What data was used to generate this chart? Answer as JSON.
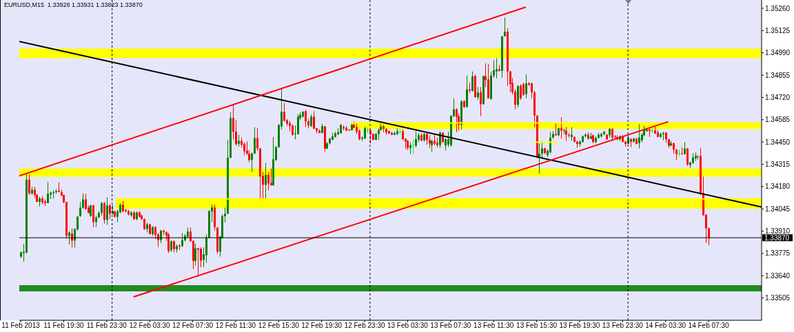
{
  "chart_data": {
    "type": "candlestick",
    "title": "EURUSD,M15  1.33928 1.33931 1.33823 1.33870",
    "x": [
      "2013-02-11T15:30",
      "2013-02-11T15:45",
      "2013-02-11T16:00",
      "2013-02-11T16:15",
      "2013-02-11T16:30",
      "2013-02-11T16:45",
      "2013-02-11T17:00",
      "2013-02-11T17:15",
      "2013-02-11T17:30",
      "2013-02-11T17:45",
      "2013-02-11T18:00",
      "2013-02-11T18:15",
      "2013-02-11T18:30",
      "2013-02-11T18:45",
      "2013-02-11T19:00",
      "2013-02-11T19:15",
      "2013-02-11T19:30",
      "2013-02-11T19:45",
      "2013-02-11T20:00",
      "2013-02-11T20:15",
      "2013-02-11T20:30",
      "2013-02-11T20:45",
      "2013-02-11T21:00",
      "2013-02-11T21:15",
      "2013-02-11T21:30",
      "2013-02-11T21:45",
      "2013-02-11T22:00",
      "2013-02-11T22:15",
      "2013-02-11T22:30",
      "2013-02-11T22:45",
      "2013-02-11T23:00",
      "2013-02-11T23:15",
      "2013-02-11T23:30",
      "2013-02-11T23:45",
      "2013-02-12T00:00",
      "2013-02-12T00:15",
      "2013-02-12T00:30",
      "2013-02-12T00:45",
      "2013-02-12T01:00",
      "2013-02-12T01:15",
      "2013-02-12T01:30",
      "2013-02-12T01:45",
      "2013-02-12T02:00",
      "2013-02-12T02:15",
      "2013-02-12T02:30",
      "2013-02-12T02:45",
      "2013-02-12T03:00",
      "2013-02-12T03:15",
      "2013-02-12T03:30",
      "2013-02-12T03:45",
      "2013-02-12T04:00",
      "2013-02-12T04:15",
      "2013-02-12T04:30",
      "2013-02-12T04:45",
      "2013-02-12T05:00",
      "2013-02-12T05:15",
      "2013-02-12T05:30",
      "2013-02-12T05:45",
      "2013-02-12T06:00",
      "2013-02-12T06:15",
      "2013-02-12T06:30",
      "2013-02-12T06:45",
      "2013-02-12T07:00",
      "2013-02-12T07:15",
      "2013-02-12T07:30",
      "2013-02-12T07:45",
      "2013-02-12T08:00",
      "2013-02-12T08:15",
      "2013-02-12T08:30",
      "2013-02-12T08:45",
      "2013-02-12T09:00",
      "2013-02-12T09:15",
      "2013-02-12T09:30",
      "2013-02-12T09:45",
      "2013-02-12T10:00",
      "2013-02-12T10:15",
      "2013-02-12T10:30",
      "2013-02-12T10:45",
      "2013-02-12T11:00",
      "2013-02-12T11:15",
      "2013-02-12T11:30",
      "2013-02-12T11:45",
      "2013-02-12T12:00",
      "2013-02-12T12:15",
      "2013-02-12T12:30",
      "2013-02-12T12:45",
      "2013-02-12T13:00",
      "2013-02-12T13:15",
      "2013-02-12T13:30",
      "2013-02-12T13:45",
      "2013-02-12T14:00",
      "2013-02-12T14:15",
      "2013-02-12T14:30",
      "2013-02-12T14:45",
      "2013-02-12T15:00",
      "2013-02-12T15:15",
      "2013-02-12T15:30",
      "2013-02-12T15:45",
      "2013-02-12T16:00",
      "2013-02-12T16:15",
      "2013-02-12T16:30",
      "2013-02-12T16:45",
      "2013-02-12T17:00",
      "2013-02-12T17:15",
      "2013-02-12T17:30",
      "2013-02-12T17:45",
      "2013-02-12T18:00",
      "2013-02-12T18:15",
      "2013-02-12T18:30",
      "2013-02-12T18:45",
      "2013-02-12T19:00",
      "2013-02-12T19:15",
      "2013-02-12T19:30",
      "2013-02-12T19:45",
      "2013-02-12T20:00",
      "2013-02-12T20:15",
      "2013-02-12T20:30",
      "2013-02-12T20:45",
      "2013-02-12T21:00",
      "2013-02-12T21:15",
      "2013-02-12T21:30",
      "2013-02-12T21:45",
      "2013-02-12T22:00",
      "2013-02-12T22:15",
      "2013-02-12T22:30",
      "2013-02-12T22:45",
      "2013-02-12T23:00",
      "2013-02-12T23:15",
      "2013-02-12T23:30",
      "2013-02-12T23:45",
      "2013-02-13T00:00",
      "2013-02-13T00:15",
      "2013-02-13T00:30",
      "2013-02-13T00:45",
      "2013-02-13T01:00",
      "2013-02-13T01:15",
      "2013-02-13T01:30",
      "2013-02-13T01:45",
      "2013-02-13T02:00",
      "2013-02-13T02:15",
      "2013-02-13T02:30",
      "2013-02-13T02:45",
      "2013-02-13T03:00",
      "2013-02-13T03:15",
      "2013-02-13T03:30",
      "2013-02-13T03:45",
      "2013-02-13T04:00",
      "2013-02-13T04:15",
      "2013-02-13T04:30",
      "2013-02-13T04:45",
      "2013-02-13T05:00",
      "2013-02-13T05:15",
      "2013-02-13T05:30",
      "2013-02-13T05:45",
      "2013-02-13T06:00",
      "2013-02-13T06:15",
      "2013-02-13T06:30",
      "2013-02-13T06:45",
      "2013-02-13T07:00",
      "2013-02-13T07:15",
      "2013-02-13T07:30",
      "2013-02-13T07:45",
      "2013-02-13T08:00",
      "2013-02-13T08:15",
      "2013-02-13T08:30",
      "2013-02-13T08:45",
      "2013-02-13T09:00",
      "2013-02-13T09:15",
      "2013-02-13T09:30",
      "2013-02-13T09:45",
      "2013-02-13T10:00",
      "2013-02-13T10:15",
      "2013-02-13T10:30",
      "2013-02-13T10:45",
      "2013-02-13T11:00",
      "2013-02-13T11:15",
      "2013-02-13T11:30",
      "2013-02-13T11:45",
      "2013-02-13T12:00",
      "2013-02-13T12:15",
      "2013-02-13T12:30",
      "2013-02-13T12:45",
      "2013-02-13T13:00",
      "2013-02-13T13:15",
      "2013-02-13T13:30",
      "2013-02-13T13:45",
      "2013-02-13T14:00",
      "2013-02-13T14:15",
      "2013-02-13T14:30",
      "2013-02-13T14:45",
      "2013-02-13T15:00",
      "2013-02-13T15:15",
      "2013-02-13T15:30",
      "2013-02-13T15:45",
      "2013-02-13T16:00",
      "2013-02-13T16:15",
      "2013-02-13T16:30",
      "2013-02-13T16:45",
      "2013-02-13T17:00",
      "2013-02-13T17:15",
      "2013-02-13T17:30",
      "2013-02-13T17:45",
      "2013-02-13T18:00",
      "2013-02-13T18:15",
      "2013-02-13T18:30",
      "2013-02-13T18:45",
      "2013-02-13T19:00",
      "2013-02-13T19:15",
      "2013-02-13T19:30",
      "2013-02-13T19:45",
      "2013-02-13T20:00",
      "2013-02-13T20:15",
      "2013-02-13T20:30",
      "2013-02-13T20:45",
      "2013-02-13T21:00",
      "2013-02-13T21:15",
      "2013-02-13T21:30",
      "2013-02-13T21:45",
      "2013-02-13T22:00",
      "2013-02-13T22:15",
      "2013-02-13T22:30",
      "2013-02-13T22:45",
      "2013-02-13T23:00",
      "2013-02-13T23:15",
      "2013-02-13T23:30",
      "2013-02-13T23:45",
      "2013-02-14T00:00",
      "2013-02-14T00:15",
      "2013-02-14T00:30",
      "2013-02-14T00:45",
      "2013-02-14T01:00",
      "2013-02-14T01:15",
      "2013-02-14T01:30",
      "2013-02-14T01:45",
      "2013-02-14T02:00",
      "2013-02-14T02:15",
      "2013-02-14T02:30",
      "2013-02-14T02:45",
      "2013-02-14T03:00",
      "2013-02-14T03:15",
      "2013-02-14T03:30",
      "2013-02-14T03:45",
      "2013-02-14T04:00",
      "2013-02-14T04:15",
      "2013-02-14T04:30",
      "2013-02-14T04:45",
      "2013-02-14T05:00",
      "2013-02-14T05:15",
      "2013-02-14T05:30",
      "2013-02-14T05:45",
      "2013-02-14T06:00",
      "2013-02-14T06:15",
      "2013-02-14T06:30",
      "2013-02-14T06:45",
      "2013-02-14T07:00",
      "2013-02-14T07:15",
      "2013-02-14T07:30"
    ],
    "ohlc": [
      [
        1.33756,
        1.33788,
        1.33746,
        1.33781
      ],
      [
        1.33777,
        1.33834,
        1.33725,
        1.33785
      ],
      [
        1.33781,
        1.34254,
        1.33774,
        1.34222
      ],
      [
        1.34222,
        1.34254,
        1.34129,
        1.34139
      ],
      [
        1.34139,
        1.34178,
        1.34129,
        1.3416
      ],
      [
        1.3416,
        1.34178,
        1.34112,
        1.34129
      ],
      [
        1.34129,
        1.34136,
        1.34087,
        1.34087
      ],
      [
        1.34087,
        1.34118,
        1.34059,
        1.34108
      ],
      [
        1.34108,
        1.34122,
        1.34073,
        1.34084
      ],
      [
        1.3409,
        1.34102,
        1.34062,
        1.3408
      ],
      [
        1.3408,
        1.34208,
        1.3408,
        1.34136
      ],
      [
        1.34132,
        1.3415,
        1.34104,
        1.34143
      ],
      [
        1.34141,
        1.34157,
        1.34107,
        1.34146
      ],
      [
        1.34146,
        1.34164,
        1.34136,
        1.34153
      ],
      [
        1.34153,
        1.34206,
        1.34146,
        1.34146
      ],
      [
        1.34146,
        1.3416,
        1.34122,
        1.34126
      ],
      [
        1.34129,
        1.34129,
        1.3408,
        1.34084
      ],
      [
        1.34087,
        1.34087,
        1.33864,
        1.33881
      ],
      [
        1.33881,
        1.33909,
        1.33829,
        1.33902
      ],
      [
        1.33895,
        1.33927,
        1.33811,
        1.33853
      ],
      [
        1.33853,
        1.33927,
        1.33811,
        1.33923
      ],
      [
        1.3392,
        1.34004,
        1.33913,
        1.33997
      ],
      [
        1.34001,
        1.34087,
        1.33997,
        1.34052
      ],
      [
        1.34052,
        1.34139,
        1.34045,
        1.34102
      ],
      [
        1.34102,
        1.34136,
        1.34038,
        1.34045
      ],
      [
        1.34052,
        1.34066,
        1.34018,
        1.3402
      ],
      [
        1.34001,
        1.34069,
        1.33997,
        1.34066
      ],
      [
        1.34066,
        1.34069,
        1.33934,
        1.33965
      ],
      [
        1.33965,
        1.34004,
        1.33934,
        1.33993
      ],
      [
        1.33993,
        1.34031,
        1.3399,
        1.3402
      ],
      [
        1.3402,
        1.34087,
        1.34004,
        1.3408
      ],
      [
        1.3408,
        1.34087,
        1.33955,
        1.33978
      ],
      [
        1.33978,
        1.34115,
        1.33948,
        1.34066
      ],
      [
        1.34066,
        1.34073,
        1.33983,
        1.34015
      ],
      [
        1.34015,
        1.34069,
        1.34011,
        1.34031
      ],
      [
        1.34029,
        1.34034,
        1.33993,
        1.33997
      ],
      [
        1.33997,
        1.34038,
        1.33965,
        1.34031
      ],
      [
        1.34024,
        1.3408,
        1.34018,
        1.34069
      ],
      [
        1.34069,
        1.34093,
        1.34024,
        1.34031
      ],
      [
        1.34037,
        1.34045,
        1.34024,
        1.34029
      ],
      [
        1.34031,
        1.34038,
        1.34004,
        1.34011
      ],
      [
        1.34006,
        1.34031,
        1.33997,
        1.34023
      ],
      [
        1.34023,
        1.34031,
        1.33978,
        1.33983
      ],
      [
        1.33983,
        1.34029,
        1.33976,
        1.34023
      ],
      [
        1.34023,
        1.34031,
        1.33993,
        1.33997
      ],
      [
        1.34004,
        1.34011,
        1.33978,
        1.33983
      ],
      [
        1.33983,
        1.33987,
        1.33917,
        1.33923
      ],
      [
        1.33923,
        1.33962,
        1.33903,
        1.33951
      ],
      [
        1.33951,
        1.33955,
        1.3389,
        1.33893
      ],
      [
        1.33893,
        1.33941,
        1.33881,
        1.33934
      ],
      [
        1.33934,
        1.33941,
        1.33862,
        1.33886
      ],
      [
        1.3389,
        1.339,
        1.33814,
        1.33856
      ],
      [
        1.33856,
        1.33918,
        1.33837,
        1.33912
      ],
      [
        1.33912,
        1.3392,
        1.33886,
        1.33904
      ],
      [
        1.33904,
        1.33909,
        1.33851,
        1.33884
      ],
      [
        1.3389,
        1.339,
        1.33778,
        1.33788
      ],
      [
        1.33795,
        1.33854,
        1.33784,
        1.33848
      ],
      [
        1.33848,
        1.33854,
        1.33781,
        1.33801
      ],
      [
        1.33801,
        1.3383,
        1.33781,
        1.3382
      ],
      [
        1.33823,
        1.3383,
        1.33795,
        1.33817
      ],
      [
        1.3382,
        1.33898,
        1.33814,
        1.33856
      ],
      [
        1.33854,
        1.33893,
        1.33848,
        1.33881
      ],
      [
        1.33876,
        1.33932,
        1.33868,
        1.33907
      ],
      [
        1.33907,
        1.33932,
        1.33848,
        1.33848
      ],
      [
        1.33851,
        1.33854,
        1.33681,
        1.3373
      ],
      [
        1.3373,
        1.33834,
        1.33702,
        1.33806
      ],
      [
        1.33806,
        1.33809,
        1.33635,
        1.33798
      ],
      [
        1.33803,
        1.33812,
        1.33691,
        1.33731
      ],
      [
        1.33737,
        1.33812,
        1.33691,
        1.3377
      ],
      [
        1.33764,
        1.3389,
        1.33719,
        1.3387
      ],
      [
        1.3387,
        1.34035,
        1.33868,
        1.34032
      ],
      [
        1.34029,
        1.34071,
        1.33965,
        1.34053
      ],
      [
        1.34053,
        1.34071,
        1.33914,
        1.33934
      ],
      [
        1.33932,
        1.33934,
        1.33774,
        1.33786
      ],
      [
        1.33786,
        1.33881,
        1.33756,
        1.33876
      ],
      [
        1.3387,
        1.34011,
        1.33865,
        1.34001
      ],
      [
        1.34001,
        1.34053,
        1.33962,
        1.34015
      ],
      [
        1.34015,
        1.34464,
        1.34015,
        1.34355
      ],
      [
        1.34355,
        1.34631,
        1.34352,
        1.34596
      ],
      [
        1.34596,
        1.3468,
        1.34464,
        1.34512
      ],
      [
        1.34512,
        1.34582,
        1.34429,
        1.34436
      ],
      [
        1.34439,
        1.34494,
        1.34422,
        1.34457
      ],
      [
        1.34457,
        1.34478,
        1.34419,
        1.34433
      ],
      [
        1.34439,
        1.34447,
        1.34369,
        1.34394
      ],
      [
        1.34397,
        1.34453,
        1.34373,
        1.3438
      ],
      [
        1.3438,
        1.34401,
        1.34327,
        1.34341
      ],
      [
        1.34341,
        1.34387,
        1.34269,
        1.3438
      ],
      [
        1.3438,
        1.3454,
        1.34377,
        1.34474
      ],
      [
        1.34474,
        1.34536,
        1.34397,
        1.34411
      ],
      [
        1.34411,
        1.34411,
        1.34099,
        1.34241
      ],
      [
        1.34244,
        1.34269,
        1.34099,
        1.34191
      ],
      [
        1.34191,
        1.34324,
        1.34104,
        1.34251
      ],
      [
        1.34251,
        1.34269,
        1.34157,
        1.34199
      ],
      [
        1.34202,
        1.3429,
        1.34185,
        1.34188
      ],
      [
        1.34188,
        1.3448,
        1.34185,
        1.34345
      ],
      [
        1.34341,
        1.34425,
        1.34335,
        1.34419
      ],
      [
        1.34419,
        1.34558,
        1.34415,
        1.34554
      ],
      [
        1.34544,
        1.3477,
        1.34526,
        1.34633
      ],
      [
        1.34633,
        1.34686,
        1.34575,
        1.34578
      ],
      [
        1.34582,
        1.34589,
        1.34547,
        1.34561
      ],
      [
        1.34564,
        1.34578,
        1.34516,
        1.34547
      ],
      [
        1.3455,
        1.34554,
        1.34488,
        1.34494
      ],
      [
        1.34498,
        1.3455,
        1.34466,
        1.34502
      ],
      [
        1.34498,
        1.34619,
        1.34494,
        1.34603
      ],
      [
        1.34596,
        1.3463,
        1.34582,
        1.34614
      ],
      [
        1.34605,
        1.34637,
        1.34596,
        1.34633
      ],
      [
        1.34637,
        1.34644,
        1.3454,
        1.34575
      ],
      [
        1.34575,
        1.34589,
        1.34533,
        1.3455
      ],
      [
        1.34547,
        1.34617,
        1.3454,
        1.34603
      ],
      [
        1.34603,
        1.34637,
        1.3453,
        1.3453
      ],
      [
        1.34533,
        1.34536,
        1.34502,
        1.34519
      ],
      [
        1.34519,
        1.34526,
        1.34502,
        1.34505
      ],
      [
        1.34505,
        1.34561,
        1.34502,
        1.34547
      ],
      [
        1.34544,
        1.34547,
        1.34391,
        1.3441
      ],
      [
        1.3441,
        1.34449,
        1.34408,
        1.34442
      ],
      [
        1.34442,
        1.34477,
        1.34433,
        1.3447
      ],
      [
        1.34463,
        1.34505,
        1.34461,
        1.34484
      ],
      [
        1.3448,
        1.34512,
        1.34477,
        1.34502
      ],
      [
        1.34498,
        1.34533,
        1.34491,
        1.34508
      ],
      [
        1.34502,
        1.34558,
        1.34502,
        1.34554
      ],
      [
        1.3454,
        1.3455,
        1.34522,
        1.34533
      ],
      [
        1.34536,
        1.34547,
        1.34516,
        1.34519
      ],
      [
        1.34526,
        1.34526,
        1.34519,
        1.34519
      ],
      [
        1.34522,
        1.34568,
        1.34519,
        1.34554
      ],
      [
        1.34554,
        1.34575,
        1.34533,
        1.34536
      ],
      [
        1.3454,
        1.34564,
        1.34498,
        1.34512
      ],
      [
        1.34519,
        1.34526,
        1.34461,
        1.34466
      ],
      [
        1.3447,
        1.34484,
        1.34456,
        1.34477
      ],
      [
        1.3447,
        1.34544,
        1.34468,
        1.34533
      ],
      [
        1.34522,
        1.3454,
        1.34505,
        1.34522
      ],
      [
        1.34522,
        1.34526,
        1.34442,
        1.34498
      ],
      [
        1.34498,
        1.34502,
        1.34461,
        1.34463
      ],
      [
        1.34463,
        1.34505,
        1.34461,
        1.34498
      ],
      [
        1.34498,
        1.34533,
        1.34463,
        1.34522
      ],
      [
        1.34522,
        1.34561,
        1.34519,
        1.34544
      ],
      [
        1.34544,
        1.34554,
        1.34508,
        1.3453
      ],
      [
        1.3453,
        1.34533,
        1.34494,
        1.34508
      ],
      [
        1.34516,
        1.34519,
        1.34498,
        1.34502
      ],
      [
        1.34505,
        1.34512,
        1.34491,
        1.34494
      ],
      [
        1.34494,
        1.34512,
        1.34491,
        1.34505
      ],
      [
        1.34498,
        1.34533,
        1.34491,
        1.34515
      ],
      [
        1.34515,
        1.34528,
        1.34498,
        1.34515
      ],
      [
        1.34515,
        1.34526,
        1.34463,
        1.34466
      ],
      [
        1.3447,
        1.34473,
        1.34407,
        1.34453
      ],
      [
        1.34456,
        1.34463,
        1.344,
        1.34414
      ],
      [
        1.34414,
        1.34449,
        1.34375,
        1.34431
      ],
      [
        1.34431,
        1.34463,
        1.34379,
        1.34431
      ],
      [
        1.34428,
        1.34515,
        1.34417,
        1.34467
      ],
      [
        1.34463,
        1.34505,
        1.34449,
        1.34491
      ],
      [
        1.34491,
        1.34505,
        1.34453,
        1.34459
      ],
      [
        1.34459,
        1.34505,
        1.34453,
        1.34498
      ],
      [
        1.34498,
        1.34512,
        1.34435,
        1.34463
      ],
      [
        1.34463,
        1.34491,
        1.34414,
        1.34442
      ],
      [
        1.34431,
        1.34463,
        1.34389,
        1.34456
      ],
      [
        1.34456,
        1.34491,
        1.34428,
        1.34439
      ],
      [
        1.34445,
        1.34477,
        1.34417,
        1.34431
      ],
      [
        1.34431,
        1.34515,
        1.34414,
        1.34506
      ],
      [
        1.34506,
        1.34509,
        1.34445,
        1.34449
      ],
      [
        1.34428,
        1.34473,
        1.34397,
        1.34467
      ],
      [
        1.34435,
        1.34512,
        1.3442,
        1.34467
      ],
      [
        1.34431,
        1.34612,
        1.34421,
        1.34609
      ],
      [
        1.34606,
        1.34714,
        1.34602,
        1.34648
      ],
      [
        1.34648,
        1.34654,
        1.34509,
        1.34602
      ],
      [
        1.34606,
        1.34623,
        1.34519,
        1.34554
      ],
      [
        1.34554,
        1.34704,
        1.34526,
        1.34696
      ],
      [
        1.34696,
        1.34704,
        1.34658,
        1.34662
      ],
      [
        1.34662,
        1.34853,
        1.34658,
        1.34769
      ],
      [
        1.34769,
        1.34811,
        1.34746,
        1.34762
      ],
      [
        1.3476,
        1.34877,
        1.34755,
        1.34849
      ],
      [
        1.34849,
        1.3486,
        1.34718,
        1.34721
      ],
      [
        1.34721,
        1.34783,
        1.34704,
        1.34749
      ],
      [
        1.34751,
        1.34783,
        1.34606,
        1.34679
      ],
      [
        1.34679,
        1.34853,
        1.34676,
        1.34849
      ],
      [
        1.34849,
        1.34927,
        1.34783,
        1.34825
      ],
      [
        1.34829,
        1.34923,
        1.34714,
        1.34714
      ],
      [
        1.3471,
        1.34877,
        1.34707,
        1.34853
      ],
      [
        1.34853,
        1.34944,
        1.34839,
        1.34885
      ],
      [
        1.34877,
        1.34957,
        1.34835,
        1.34891
      ],
      [
        1.34891,
        1.34916,
        1.34877,
        1.34881
      ],
      [
        1.34881,
        1.3509,
        1.34838,
        1.3509
      ],
      [
        1.3509,
        1.35204,
        1.3509,
        1.35118
      ],
      [
        1.35118,
        1.35139,
        1.3479,
        1.34877
      ],
      [
        1.34877,
        1.34881,
        1.34751,
        1.34801
      ],
      [
        1.34807,
        1.34839,
        1.34737,
        1.34751
      ],
      [
        1.34755,
        1.34769,
        1.34648,
        1.34676
      ],
      [
        1.34676,
        1.34797,
        1.34659,
        1.34788
      ],
      [
        1.34791,
        1.348,
        1.34705,
        1.34715
      ],
      [
        1.348,
        1.3481,
        1.3473,
        1.34736
      ],
      [
        1.3474,
        1.3486,
        1.34715,
        1.34805
      ],
      [
        1.34805,
        1.34812,
        1.3479,
        1.34796
      ],
      [
        1.34805,
        1.3481,
        1.34715,
        1.3475
      ],
      [
        1.3475,
        1.3476,
        1.3454,
        1.3461
      ],
      [
        1.3461,
        1.3461,
        1.34352,
        1.34359
      ],
      [
        1.34359,
        1.3444,
        1.34257,
        1.3438
      ],
      [
        1.3438,
        1.34452,
        1.34352,
        1.34411
      ],
      [
        1.34411,
        1.34415,
        1.34377,
        1.34383
      ],
      [
        1.3437,
        1.34405,
        1.34359,
        1.34397
      ],
      [
        1.34387,
        1.34512,
        1.3438,
        1.34477
      ],
      [
        1.34477,
        1.34516,
        1.3447,
        1.34498
      ],
      [
        1.34498,
        1.34564,
        1.34488,
        1.34491
      ],
      [
        1.34491,
        1.34536,
        1.34484,
        1.34533
      ],
      [
        1.34533,
        1.346,
        1.3447,
        1.34519
      ],
      [
        1.34519,
        1.3453,
        1.34498,
        1.34522
      ],
      [
        1.34519,
        1.3454,
        1.34457,
        1.34494
      ],
      [
        1.34493,
        1.34505,
        1.34477,
        1.34491
      ],
      [
        1.3448,
        1.3454,
        1.34457,
        1.34494
      ],
      [
        1.3448,
        1.34484,
        1.34447,
        1.34452
      ],
      [
        1.34452,
        1.34457,
        1.34415,
        1.34438
      ],
      [
        1.34438,
        1.34461,
        1.34422,
        1.34452
      ],
      [
        1.3445,
        1.34491,
        1.34447,
        1.34484
      ],
      [
        1.34484,
        1.34503,
        1.3448,
        1.34494
      ],
      [
        1.34494,
        1.34508,
        1.34466,
        1.3447
      ],
      [
        1.3447,
        1.34505,
        1.34466,
        1.34484
      ],
      [
        1.34491,
        1.34494,
        1.34443,
        1.3445
      ],
      [
        1.3445,
        1.34484,
        1.34443,
        1.34475
      ],
      [
        1.34475,
        1.34505,
        1.3447,
        1.34494
      ],
      [
        1.34484,
        1.34505,
        1.34477,
        1.34498
      ],
      [
        1.34498,
        1.34516,
        1.34491,
        1.34512
      ],
      [
        1.34494,
        1.34498,
        1.34463,
        1.34466
      ],
      [
        1.34491,
        1.34533,
        1.34477,
        1.3453
      ],
      [
        1.3453,
        1.34533,
        1.34457,
        1.34477
      ],
      [
        1.34486,
        1.34491,
        1.3447,
        1.34484
      ],
      [
        1.3448,
        1.34491,
        1.34461,
        1.34466
      ],
      [
        1.34466,
        1.34491,
        1.34457,
        1.34484
      ],
      [
        1.34484,
        1.34491,
        1.34447,
        1.3445
      ],
      [
        1.34452,
        1.34457,
        1.34422,
        1.34438
      ],
      [
        1.34438,
        1.34491,
        1.34436,
        1.34475
      ],
      [
        1.34466,
        1.34475,
        1.34419,
        1.34452
      ],
      [
        1.34452,
        1.34477,
        1.34447,
        1.3447
      ],
      [
        1.3447,
        1.34475,
        1.34436,
        1.34438
      ],
      [
        1.34443,
        1.34558,
        1.34411,
        1.34477
      ],
      [
        1.3446,
        1.34503,
        1.34449,
        1.34494
      ],
      [
        1.34491,
        1.34549,
        1.34484,
        1.34522
      ],
      [
        1.34516,
        1.34535,
        1.34512,
        1.34526
      ],
      [
        1.34526,
        1.34533,
        1.3448,
        1.34516
      ],
      [
        1.34519,
        1.34533,
        1.34505,
        1.34519
      ],
      [
        1.34519,
        1.34544,
        1.34498,
        1.34502
      ],
      [
        1.34507,
        1.34521,
        1.3448,
        1.34481
      ],
      [
        1.34481,
        1.34507,
        1.34474,
        1.34498
      ],
      [
        1.34498,
        1.34512,
        1.3446,
        1.34505
      ],
      [
        1.34507,
        1.3451,
        1.34446,
        1.34466
      ],
      [
        1.34466,
        1.3447,
        1.34414,
        1.34428
      ],
      [
        1.34428,
        1.34456,
        1.34424,
        1.34442
      ],
      [
        1.34442,
        1.34446,
        1.34379,
        1.34404
      ],
      [
        1.34404,
        1.34407,
        1.3434,
        1.34377
      ],
      [
        1.34382,
        1.34404,
        1.34365,
        1.34382
      ],
      [
        1.34382,
        1.34418,
        1.34372,
        1.34379
      ],
      [
        1.34377,
        1.34449,
        1.34372,
        1.3441
      ],
      [
        1.3441,
        1.34414,
        1.34307,
        1.34312
      ],
      [
        1.3431,
        1.34331,
        1.34293,
        1.34326
      ],
      [
        1.34324,
        1.34382,
        1.34317,
        1.34356
      ],
      [
        1.34351,
        1.34386,
        1.34335,
        1.34365
      ],
      [
        1.34363,
        1.34368,
        1.34344,
        1.34365
      ],
      [
        1.34365,
        1.34414,
        1.34129,
        1.34136
      ],
      [
        1.3414,
        1.3424,
        1.34006,
        1.34006
      ],
      [
        1.3401,
        1.3401,
        1.33839,
        1.33927
      ],
      [
        1.33928,
        1.33931,
        1.33823,
        1.3387
      ]
    ],
    "colors": [
      "#008000",
      "#008000",
      "#008000",
      "#ff0000",
      "#008000",
      "#ff0000",
      "#ff0000",
      "#008000",
      "#ff0000",
      "#ff0000",
      "#008000",
      "#008000",
      "#008000",
      "#008000",
      "#ff0000",
      "#ff0000",
      "#ff0000",
      "#ff0000",
      "#008000",
      "#ff0000",
      "#008000",
      "#008000",
      "#008000",
      "#008000",
      "#ff0000",
      "#ff0000",
      "#008000",
      "#ff0000",
      "#008000",
      "#008000",
      "#008000",
      "#ff0000",
      "#008000",
      "#ff0000",
      "#008000",
      "#ff0000",
      "#008000",
      "#008000",
      "#ff0000",
      "#ff0000",
      "#ff0000",
      "#008000",
      "#ff0000",
      "#008000",
      "#ff0000",
      "#ff0000",
      "#ff0000",
      "#008000",
      "#ff0000",
      "#008000",
      "#ff0000",
      "#ff0000",
      "#008000",
      "#ff0000",
      "#ff0000",
      "#ff0000",
      "#008000",
      "#ff0000",
      "#008000",
      "#ff0000",
      "#008000",
      "#008000",
      "#008000",
      "#ff0000",
      "#ff0000",
      "#008000",
      "#ff0000",
      "#ff0000",
      "#008000",
      "#008000",
      "#008000",
      "#008000",
      "#ff0000",
      "#ff0000",
      "#008000",
      "#008000",
      "#008000",
      "#008000",
      "#008000",
      "#ff0000",
      "#ff0000",
      "#008000",
      "#ff0000",
      "#ff0000",
      "#ff0000",
      "#ff0000",
      "#008000",
      "#008000",
      "#ff0000",
      "#ff0000",
      "#ff0000",
      "#008000",
      "#ff0000",
      "#ff0000",
      "#008000",
      "#008000",
      "#008000",
      "#008000",
      "#ff0000",
      "#ff0000",
      "#ff0000",
      "#ff0000",
      "#008000",
      "#008000",
      "#008000",
      "#008000",
      "#ff0000",
      "#ff0000",
      "#008000",
      "#ff0000",
      "#ff0000",
      "#ff0000",
      "#008000",
      "#ff0000",
      "#008000",
      "#008000",
      "#008000",
      "#008000",
      "#008000",
      "#008000",
      "#ff0000",
      "#ff0000",
      "#ff0000",
      "#008000",
      "#ff0000",
      "#ff0000",
      "#ff0000",
      "#008000",
      "#008000",
      "#00ff00",
      "#ff0000",
      "#ff0000",
      "#008000",
      "#008000",
      "#008000",
      "#ff0000",
      "#ff0000",
      "#ff0000",
      "#ff0000",
      "#008000",
      "#008000",
      "#00ff00",
      "#ff0000",
      "#ff0000",
      "#ff0000",
      "#008000",
      "#00ff00",
      "#008000",
      "#008000",
      "#ff0000",
      "#008000",
      "#ff0000",
      "#ff0000",
      "#008000",
      "#ff0000",
      "#ff0000",
      "#008000",
      "#ff0000",
      "#008000",
      "#008000",
      "#008000",
      "#008000",
      "#ff0000",
      "#ff0000",
      "#008000",
      "#ff0000",
      "#008000",
      "#ff0000",
      "#008000",
      "#ff0000",
      "#008000",
      "#ff0000",
      "#008000",
      "#ff0000",
      "#ff0000",
      "#008000",
      "#008000",
      "#008000",
      "#ff0000",
      "#008000",
      "#008000",
      "#ff0000",
      "#ff0000",
      "#ff0000",
      "#ff0000",
      "#008000",
      "#ff0000",
      "#ff0000",
      "#008000",
      "#ff0000",
      "#ff0000",
      "#ff0000",
      "#ff0000",
      "#008000",
      "#008000",
      "#ff0000",
      "#008000",
      "#008000",
      "#008000",
      "#ff0000",
      "#008000",
      "#ff0000",
      "#008000",
      "#ff0000",
      "#ff0000",
      "#008000",
      "#ff0000",
      "#ff0000",
      "#008000",
      "#008000",
      "#008000",
      "#ff0000",
      "#008000",
      "#ff0000",
      "#008000",
      "#008000",
      "#008000",
      "#008000",
      "#ff0000",
      "#008000",
      "#ff0000",
      "#ff0000",
      "#ff0000",
      "#008000",
      "#ff0000",
      "#ff0000",
      "#008000",
      "#ff0000",
      "#008000",
      "#ff0000",
      "#008000",
      "#008000",
      "#008000",
      "#008000",
      "#ff0000",
      "#00ff00",
      "#ff0000",
      "#ff0000",
      "#008000",
      "#008000",
      "#ff0000",
      "#ff0000",
      "#008000",
      "#ff0000",
      "#ff0000",
      "#00ff00",
      "#ff0000",
      "#008000",
      "#ff0000",
      "#008000",
      "#008000",
      "#008000",
      "#008000",
      "#ff0000",
      "#ff0000",
      "#ff0000",
      "#ff0000"
    ],
    "xlim": [
      "2013-02-11T15:22",
      "2013-02-14T12:26"
    ],
    "xticks": [
      {
        "value": "2013-02-11T15:30",
        "label": "11 Feb 2013"
      },
      {
        "value": "2013-02-11T19:30",
        "label": "11 Feb 19:30"
      },
      {
        "value": "2013-02-11T23:30",
        "label": "11 Feb 23:30"
      },
      {
        "value": "2013-02-12T03:30",
        "label": "12 Feb 03:30"
      },
      {
        "value": "2013-02-12T07:30",
        "label": "12 Feb 07:30"
      },
      {
        "value": "2013-02-12T11:30",
        "label": "12 Feb 11:30"
      },
      {
        "value": "2013-02-12T15:30",
        "label": "12 Feb 15:30"
      },
      {
        "value": "2013-02-12T19:30",
        "label": "12 Feb 19:30"
      },
      {
        "value": "2013-02-12T23:30",
        "label": "12 Feb 23:30"
      },
      {
        "value": "2013-02-13T03:30",
        "label": "13 Feb 03:30"
      },
      {
        "value": "2013-02-13T07:30",
        "label": "13 Feb 07:30"
      },
      {
        "value": "2013-02-13T11:30",
        "label": "13 Feb 11:30"
      },
      {
        "value": "2013-02-13T15:30",
        "label": "13 Feb 15:30"
      },
      {
        "value": "2013-02-13T19:30",
        "label": "13 Feb 19:30"
      },
      {
        "value": "2013-02-13T23:30",
        "label": "13 Feb 23:30"
      },
      {
        "value": "2013-02-14T03:30",
        "label": "14 Feb 03:30"
      },
      {
        "value": "2013-02-14T07:30",
        "label": "14 Feb 07:30"
      }
    ],
    "ylim": [
      1.3337,
      1.3531
    ],
    "yticks": [
      {
        "value": 1.3526,
        "label": "1.35260"
      },
      1.35125,
      {
        "value": 1.3499,
        "label": "1.34990"
      },
      1.34855,
      {
        "value": 1.3472,
        "label": "1.34720"
      },
      1.34585,
      {
        "value": 1.3445,
        "label": "1.34450"
      },
      1.34315,
      {
        "value": 1.3418,
        "label": "1.34180"
      },
      1.34045,
      {
        "value": 1.3391,
        "label": "1.33910"
      },
      1.33775,
      {
        "value": 1.3364,
        "label": "1.33640"
      },
      1.33505
    ],
    "bands": [
      {
        "axis": "y",
        "from": 1.34957,
        "to": 1.35016,
        "color": "#ffff00"
      },
      {
        "axis": "y",
        "from": 1.3424,
        "to": 1.34289,
        "color": "#ffff00"
      },
      {
        "axis": "y",
        "from": 1.33545,
        "to": 1.33583,
        "color": "#228b22"
      }
    ],
    "series": [
      {
        "type": "line",
        "color": "#ffff00",
        "x": [
          "2013-02-12T00:22",
          "2013-02-14T12:26"
        ],
        "values": [
          1.34105,
          1.34105
        ],
        "lower": [
          1.34047,
          1.34047
        ],
        "upper": [
          1.34105,
          1.34105
        ]
      },
      {
        "type": "line",
        "color": "#ffff00",
        "x": [
          "2013-02-12T22:12",
          "2013-02-14T12:26"
        ],
        "values": [
          1.34565,
          1.34565
        ],
        "lower": [
          1.34529,
          1.34529
        ],
        "upper": [
          1.34565,
          1.34565
        ]
      },
      {
        "type": "line",
        "color": "#ffff00",
        "x": [
          "2013-02-13T15:15",
          "2013-02-13T17:30"
        ],
        "values": [
          1.34448,
          1.34448
        ]
      },
      {
        "type": "line",
        "color": "#000000",
        "x": [
          "2013-02-11T15:22",
          "2013-02-14T12:26"
        ],
        "values": [
          1.35059,
          1.34056
        ]
      },
      {
        "type": "line",
        "color": "#ff0000",
        "x": [
          "2013-02-11T15:22",
          "2013-02-13T14:30"
        ],
        "values": [
          1.34245,
          1.35267
        ]
      },
      {
        "type": "line",
        "color": "#ff0000",
        "x": [
          "2013-02-12T02:00",
          "2013-02-14T03:45"
        ],
        "values": [
          1.33512,
          1.34573
        ]
      }
    ],
    "ref_lines": [
      {
        "axis": "x",
        "value": "2013-02-12T00:00",
        "color": "#000000",
        "line_style": "dashed"
      },
      {
        "axis": "x",
        "value": "2013-02-13T00:00",
        "color": "#000000",
        "line_style": "dashed"
      },
      {
        "axis": "x",
        "value": "2013-02-14T00:00",
        "color": "#000000",
        "line_style": "dashed"
      },
      {
        "axis": "y",
        "value": 1.3387,
        "label": "1.33870",
        "color": "#000000",
        "line_style": "solid"
      }
    ]
  }
}
